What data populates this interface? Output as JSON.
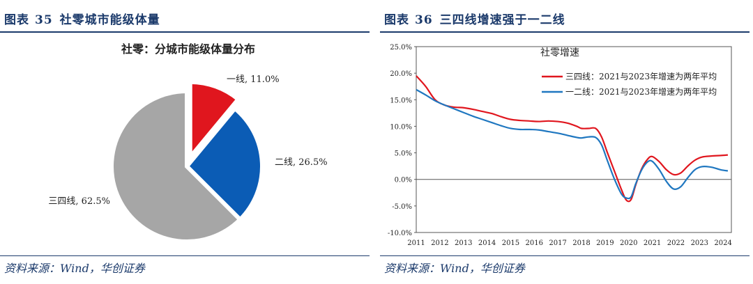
{
  "left": {
    "fig_label": "图表",
    "fig_number": "35",
    "fig_title": "社零城市能级体量",
    "source": "资料来源：Wind，华创证券"
  },
  "right": {
    "fig_label": "图表",
    "fig_number": "36",
    "fig_title": "三四线增速强于一二线",
    "source": "资料来源：Wind，华创证券"
  },
  "chart_data": [
    {
      "type": "pie",
      "title": "社零：分城市能级体量分布",
      "slices": [
        {
          "label": "一线, 11.0%",
          "value": 11.0,
          "color": "#e0161e",
          "exploded": true
        },
        {
          "label": "二线, 26.5%",
          "value": 26.5,
          "color": "#0b5cb5",
          "exploded": false
        },
        {
          "label": "三四线, 62.5%",
          "value": 62.5,
          "color": "#a6a6a6",
          "exploded": false
        }
      ]
    },
    {
      "type": "line",
      "title": "社零增速",
      "x_ticks": [
        "2011",
        "2012",
        "2013",
        "2014",
        "2015",
        "2016",
        "2017",
        "2018",
        "2019",
        "2020",
        "2021",
        "2022",
        "2023",
        "2024"
      ],
      "y_ticks": [
        "25.0%",
        "20.0%",
        "15.0%",
        "10.0%",
        "5.0%",
        "0.0%",
        "-5.0%",
        "-10.0%"
      ],
      "ylim": [
        -10,
        25
      ],
      "xlim": [
        2011,
        2024.35
      ],
      "legend_position": "top-right",
      "series": [
        {
          "name": "三四线：2021与2023年增速为两年平均",
          "color": "#e0161e",
          "points": [
            [
              2011.0,
              19.5
            ],
            [
              2011.4,
              17.5
            ],
            [
              2011.8,
              15.0
            ],
            [
              2012.2,
              14.0
            ],
            [
              2012.6,
              13.6
            ],
            [
              2013.0,
              13.5
            ],
            [
              2013.4,
              13.2
            ],
            [
              2013.8,
              12.8
            ],
            [
              2014.2,
              12.4
            ],
            [
              2014.6,
              11.8
            ],
            [
              2015.0,
              11.3
            ],
            [
              2015.4,
              11.1
            ],
            [
              2015.8,
              11.0
            ],
            [
              2016.2,
              10.9
            ],
            [
              2016.6,
              11.0
            ],
            [
              2017.0,
              10.9
            ],
            [
              2017.4,
              10.6
            ],
            [
              2017.8,
              10.0
            ],
            [
              2018.0,
              9.6
            ],
            [
              2018.3,
              9.6
            ],
            [
              2018.6,
              9.6
            ],
            [
              2018.85,
              8.0
            ],
            [
              2019.1,
              5.0
            ],
            [
              2019.4,
              1.5
            ],
            [
              2019.7,
              -2.0
            ],
            [
              2019.9,
              -3.9
            ],
            [
              2020.1,
              -3.8
            ],
            [
              2020.3,
              -1.0
            ],
            [
              2020.55,
              2.0
            ],
            [
              2020.8,
              3.8
            ],
            [
              2021.0,
              4.3
            ],
            [
              2021.3,
              3.3
            ],
            [
              2021.6,
              1.8
            ],
            [
              2021.9,
              0.9
            ],
            [
              2022.2,
              1.2
            ],
            [
              2022.5,
              2.5
            ],
            [
              2022.8,
              3.6
            ],
            [
              2023.1,
              4.2
            ],
            [
              2023.5,
              4.4
            ],
            [
              2023.9,
              4.5
            ],
            [
              2024.2,
              4.6
            ]
          ]
        },
        {
          "name": "一二线：2021与2023年增速为两年平均",
          "color": "#1f77c0",
          "points": [
            [
              2011.0,
              16.9
            ],
            [
              2011.4,
              15.9
            ],
            [
              2011.8,
              14.8
            ],
            [
              2012.2,
              14.0
            ],
            [
              2012.6,
              13.3
            ],
            [
              2013.0,
              12.6
            ],
            [
              2013.4,
              11.9
            ],
            [
              2013.8,
              11.3
            ],
            [
              2014.2,
              10.7
            ],
            [
              2014.6,
              10.1
            ],
            [
              2015.0,
              9.6
            ],
            [
              2015.4,
              9.4
            ],
            [
              2015.8,
              9.4
            ],
            [
              2016.2,
              9.3
            ],
            [
              2016.6,
              9.0
            ],
            [
              2017.0,
              8.7
            ],
            [
              2017.4,
              8.3
            ],
            [
              2017.8,
              7.9
            ],
            [
              2018.0,
              7.8
            ],
            [
              2018.3,
              8.0
            ],
            [
              2018.6,
              7.9
            ],
            [
              2018.85,
              6.5
            ],
            [
              2019.1,
              3.5
            ],
            [
              2019.4,
              0.0
            ],
            [
              2019.7,
              -2.8
            ],
            [
              2019.9,
              -3.5
            ],
            [
              2020.1,
              -3.3
            ],
            [
              2020.3,
              -0.8
            ],
            [
              2020.55,
              1.8
            ],
            [
              2020.8,
              3.3
            ],
            [
              2021.0,
              3.4
            ],
            [
              2021.3,
              1.8
            ],
            [
              2021.6,
              -0.4
            ],
            [
              2021.9,
              -1.8
            ],
            [
              2022.2,
              -1.4
            ],
            [
              2022.5,
              0.3
            ],
            [
              2022.8,
              1.8
            ],
            [
              2023.1,
              2.4
            ],
            [
              2023.5,
              2.3
            ],
            [
              2023.9,
              1.8
            ],
            [
              2024.2,
              1.6
            ]
          ]
        }
      ]
    }
  ]
}
